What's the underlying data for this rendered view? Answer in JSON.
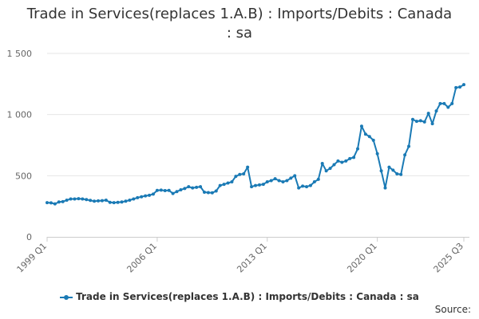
{
  "chart_data": {
    "type": "line",
    "title": "Trade in Services(replaces 1.A.B) : Imports/Debits : Canada : sa",
    "title_lines": [
      "Trade in Services(replaces 1.A.B) : Imports/Debits : Canada",
      ": sa"
    ],
    "xlabel": "",
    "ylabel": "",
    "x_ticks": [
      "1999 Q1",
      "2006 Q1",
      "2013 Q1",
      "2020 Q1",
      "2025 Q3"
    ],
    "y_ticks": [
      "0",
      "500",
      "1 000",
      "1 500"
    ],
    "ylim": [
      0,
      1500
    ],
    "grid": "horizontal",
    "legend_position": "bottom",
    "line_color": "#1a7ab5",
    "series": [
      {
        "name": "Trade in Services(replaces 1.A.B) : Imports/Debits : Canada : sa",
        "x_start": "1999 Q1",
        "x_end": "2025 Q3",
        "frequency": "quarterly",
        "values": [
          280,
          278,
          270,
          285,
          288,
          300,
          310,
          310,
          312,
          310,
          305,
          298,
          292,
          294,
          296,
          300,
          282,
          280,
          282,
          285,
          292,
          300,
          310,
          320,
          328,
          335,
          340,
          350,
          380,
          382,
          378,
          380,
          355,
          370,
          385,
          395,
          410,
          400,
          405,
          410,
          365,
          362,
          360,
          375,
          420,
          430,
          440,
          450,
          495,
          510,
          515,
          570,
          410,
          420,
          425,
          430,
          450,
          460,
          475,
          460,
          450,
          460,
          480,
          500,
          400,
          415,
          410,
          420,
          450,
          470,
          600,
          540,
          560,
          590,
          620,
          610,
          620,
          640,
          650,
          720,
          905,
          840,
          820,
          790,
          680,
          540,
          400,
          570,
          545,
          515,
          510,
          670,
          740,
          960,
          945,
          950,
          940,
          1010,
          925,
          1030,
          1090,
          1090,
          1060,
          1090,
          1220,
          1225,
          1245
        ]
      }
    ]
  },
  "source_label": "Source:"
}
